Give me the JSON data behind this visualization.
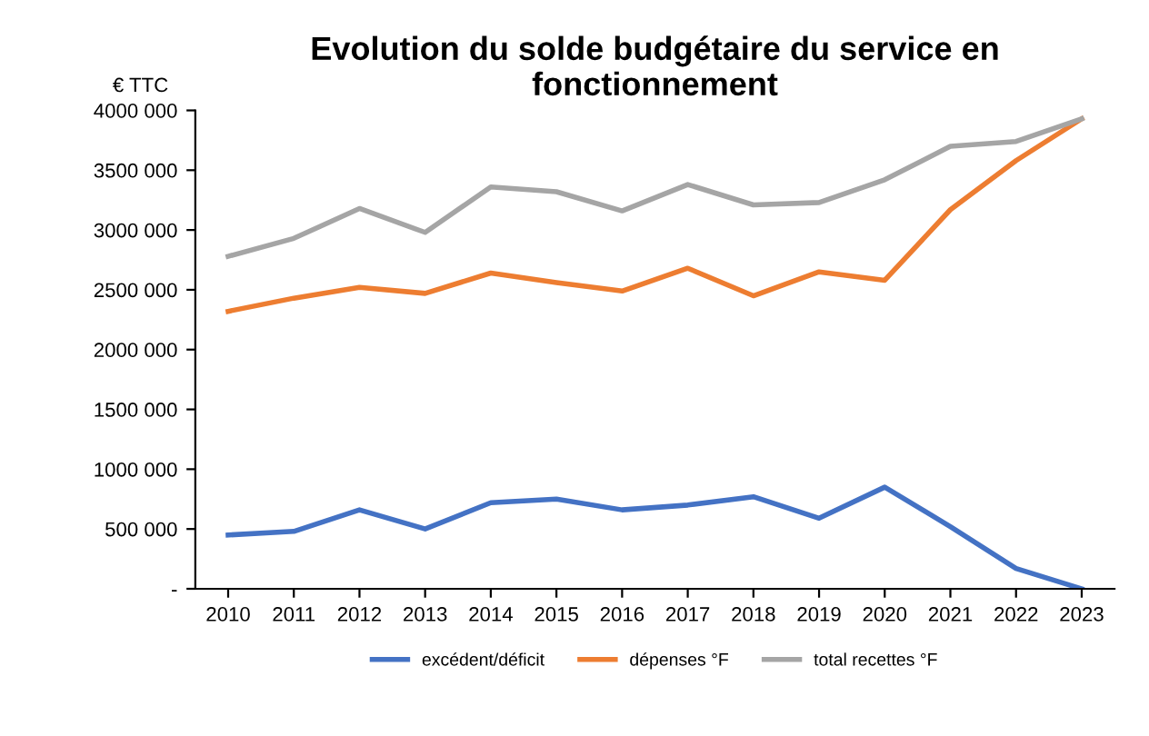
{
  "chart_data": {
    "type": "line",
    "title": "Evolution du solde budgétaire du service en\nfonctionnement",
    "ylabel": "€ TTC",
    "categories": [
      "2010",
      "2011",
      "2012",
      "2013",
      "2014",
      "2015",
      "2016",
      "2017",
      "2018",
      "2019",
      "2020",
      "2021",
      "2022",
      "2023"
    ],
    "series": [
      {
        "name": "excédent/déficit",
        "color": "#4472c4",
        "values": [
          450000,
          480000,
          660000,
          500000,
          720000,
          750000,
          660000,
          700000,
          770000,
          590000,
          850000,
          520000,
          170000,
          0
        ]
      },
      {
        "name": "dépenses °F",
        "color": "#ed7d31",
        "values": [
          2320000,
          2430000,
          2520000,
          2470000,
          2640000,
          2560000,
          2490000,
          2680000,
          2450000,
          2650000,
          2580000,
          3170000,
          3580000,
          3930000
        ]
      },
      {
        "name": "total recettes °F",
        "color": "#a5a5a5",
        "values": [
          2780000,
          2930000,
          3180000,
          2980000,
          3360000,
          3320000,
          3160000,
          3380000,
          3210000,
          3230000,
          3420000,
          3700000,
          3740000,
          3930000
        ]
      }
    ],
    "ylim": [
      0,
      4000000
    ],
    "yticks": [
      {
        "value": 0,
        "label": "-"
      },
      {
        "value": 500000,
        "label": "500 000"
      },
      {
        "value": 1000000,
        "label": "1000 000"
      },
      {
        "value": 1500000,
        "label": "1500 000"
      },
      {
        "value": 2000000,
        "label": "2000 000"
      },
      {
        "value": 2500000,
        "label": "2500 000"
      },
      {
        "value": 3000000,
        "label": "3000 000"
      },
      {
        "value": 3500000,
        "label": "3500 000"
      },
      {
        "value": 4000000,
        "label": "4000 000"
      }
    ],
    "grid": false,
    "legend": "bottom",
    "marker": "none",
    "line_style": "solid"
  }
}
